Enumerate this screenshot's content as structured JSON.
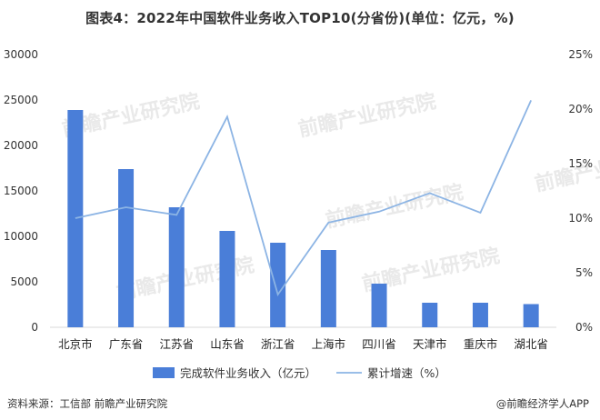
{
  "title": "图表4：2022年中国软件业务收入TOP10(分省份)(单位：亿元，%)",
  "source": "资料来源：工信部 前瞻产业研究院",
  "credit": "@前瞻经济学人APP",
  "watermark": "前瞻产业研究院",
  "colors": {
    "bar": "#4a7ed8",
    "line": "#8cb4e4"
  },
  "chart_data": {
    "type": "bar+line",
    "categories": [
      "北京市",
      "广东省",
      "江苏省",
      "山东省",
      "浙江省",
      "上海市",
      "四川省",
      "天津市",
      "重庆市",
      "湖北省"
    ],
    "series": [
      {
        "name": "完成软件业务收入（亿元）",
        "type": "bar",
        "axis": "left",
        "values": [
          23900,
          17400,
          13200,
          10600,
          9300,
          8500,
          4800,
          2700,
          2700,
          2550
        ]
      },
      {
        "name": "累计增速（%）",
        "type": "line",
        "axis": "right",
        "values": [
          10.0,
          11.0,
          10.3,
          19.3,
          3.0,
          9.6,
          10.6,
          12.3,
          10.5,
          20.8
        ]
      }
    ],
    "y_left": {
      "min": 0,
      "max": 30000,
      "ticks": [
        "0",
        "5000",
        "10000",
        "15000",
        "20000",
        "25000",
        "30000"
      ]
    },
    "y_right": {
      "min": 0,
      "max": 25,
      "ticks": [
        "0%",
        "5%",
        "10%",
        "15%",
        "20%",
        "25%"
      ]
    },
    "grid": false,
    "legend_position": "bottom"
  }
}
